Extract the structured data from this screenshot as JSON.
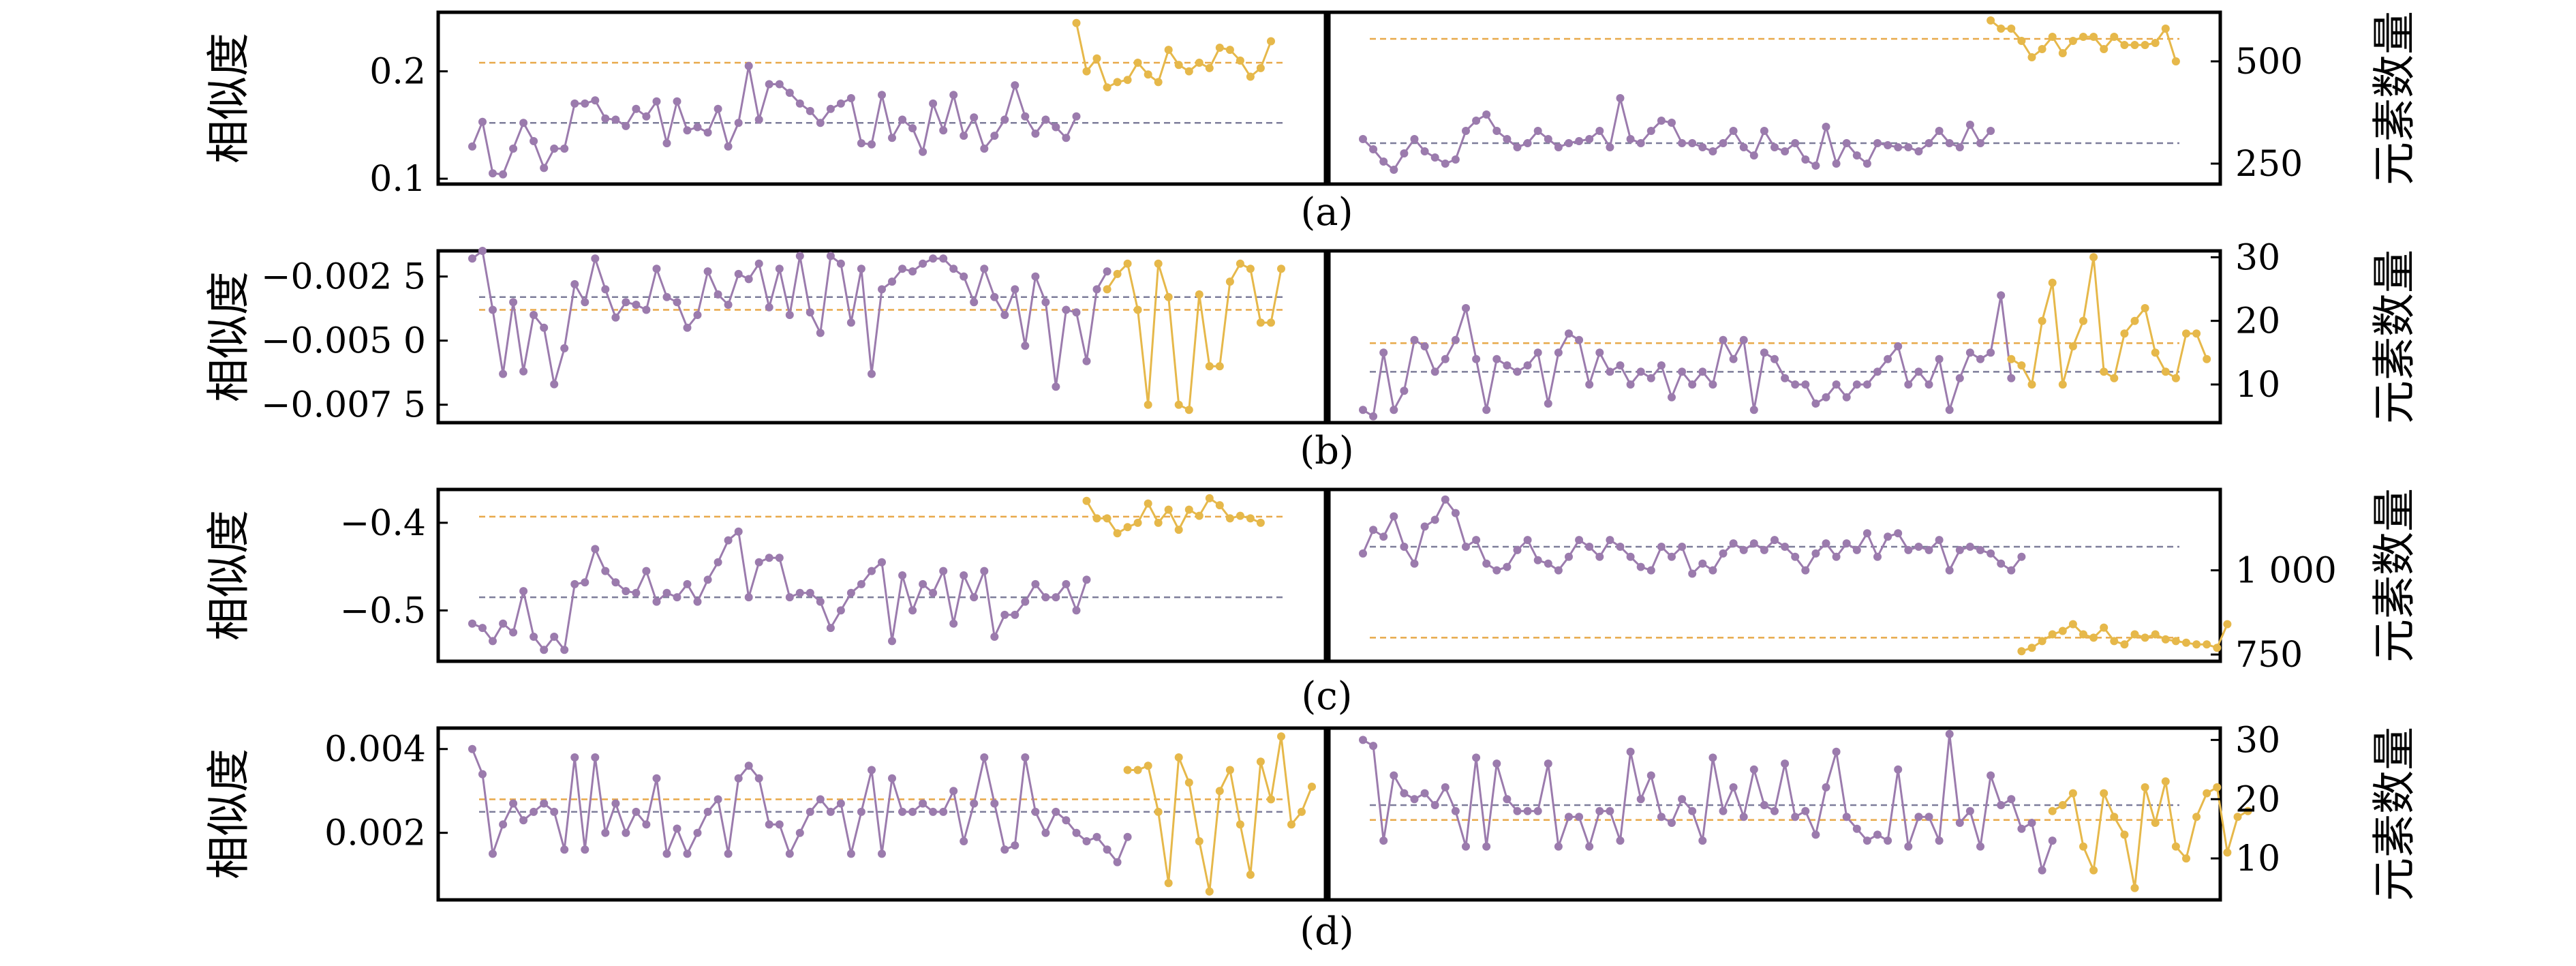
{
  "colors": {
    "purple": "#9b7bad",
    "yellow": "#e6b84a",
    "frame": "#000000",
    "purple_ref": "#7d7d9a",
    "yellow_ref": "#e8a94a"
  },
  "chart_data": [
    {
      "type": "line",
      "caption": "(a)",
      "left": {
        "ylabel": "相似度",
        "ylim": [
          0.095,
          0.255
        ],
        "yticks": [
          0.1,
          0.2
        ],
        "yticklabels": [
          "0.1",
          "0.2"
        ],
        "series": [
          {
            "color": "purple",
            "x_start": 0,
            "values": [
              0.13,
              0.153,
              0.105,
              0.104,
              0.128,
              0.152,
              0.135,
              0.11,
              0.128,
              0.128,
              0.17,
              0.17,
              0.173,
              0.156,
              0.155,
              0.149,
              0.165,
              0.158,
              0.172,
              0.133,
              0.172,
              0.145,
              0.148,
              0.143,
              0.165,
              0.13,
              0.152,
              0.205,
              0.155,
              0.188,
              0.188,
              0.18,
              0.17,
              0.163,
              0.152,
              0.165,
              0.17,
              0.175,
              0.133,
              0.132,
              0.178,
              0.138,
              0.155,
              0.147,
              0.125,
              0.17,
              0.145,
              0.178,
              0.14,
              0.157,
              0.128,
              0.14,
              0.155,
              0.187,
              0.158,
              0.142,
              0.155,
              0.148,
              0.138,
              0.158
            ]
          },
          {
            "color": "yellow",
            "x_start": 59,
            "values": [
              0.245,
              0.2,
              0.212,
              0.185,
              0.19,
              0.192,
              0.208,
              0.197,
              0.19,
              0.22,
              0.206,
              0.2,
              0.208,
              0.203,
              0.222,
              0.22,
              0.21,
              0.195,
              0.203,
              0.228
            ]
          }
        ],
        "reference_lines": [
          {
            "color": "purple_ref",
            "y": 0.152
          },
          {
            "color": "yellow_ref",
            "y": 0.208
          }
        ]
      },
      "right": {
        "ylabel": "元素数量",
        "ylim": [
          200,
          620
        ],
        "yticks": [
          250,
          500
        ],
        "yticklabels": [
          "250",
          "500"
        ],
        "series": [
          {
            "color": "purple",
            "x_start": 0,
            "values": [
              310,
              285,
              255,
              235,
              275,
              310,
              280,
              265,
              250,
              260,
              330,
              355,
              370,
              330,
              310,
              290,
              300,
              330,
              310,
              290,
              300,
              305,
              310,
              330,
              290,
              410,
              310,
              300,
              330,
              355,
              350,
              300,
              300,
              290,
              280,
              300,
              330,
              290,
              270,
              330,
              290,
              280,
              300,
              260,
              245,
              340,
              250,
              300,
              270,
              250,
              300,
              295,
              290,
              290,
              280,
              300,
              330,
              300,
              290,
              345,
              300,
              330
            ]
          },
          {
            "color": "yellow",
            "x_start": 61,
            "values": [
              600,
              580,
              580,
              550,
              510,
              530,
              560,
              520,
              550,
              560,
              560,
              530,
              560,
              540,
              540,
              540,
              545,
              580,
              500
            ]
          }
        ],
        "reference_lines": [
          {
            "color": "purple_ref",
            "y": 300
          },
          {
            "color": "yellow_ref",
            "y": 555
          }
        ]
      }
    },
    {
      "type": "line",
      "caption": "(b)",
      "left": {
        "ylabel": "相似度",
        "ylim": [
          -0.0082,
          -0.0015
        ],
        "yticks": [
          -0.0025,
          -0.005,
          -0.0075
        ],
        "yticklabels": [
          "−0.002 5",
          "−0.005 0",
          "−0.007 5"
        ],
        "series": [
          {
            "color": "purple",
            "x_start": 0,
            "values": [
              -0.0018,
              -0.0015,
              -0.0038,
              -0.0063,
              -0.0035,
              -0.0062,
              -0.004,
              -0.0045,
              -0.0067,
              -0.0053,
              -0.0028,
              -0.0035,
              -0.0018,
              -0.003,
              -0.0041,
              -0.0035,
              -0.0036,
              -0.0038,
              -0.0022,
              -0.0033,
              -0.0035,
              -0.0045,
              -0.004,
              -0.0023,
              -0.0032,
              -0.0036,
              -0.0024,
              -0.0026,
              -0.002,
              -0.0037,
              -0.0022,
              -0.004,
              -0.0017,
              -0.0039,
              -0.0047,
              -0.0017,
              -0.002,
              -0.0043,
              -0.0022,
              -0.0063,
              -0.003,
              -0.0027,
              -0.0022,
              -0.0023,
              -0.002,
              -0.0018,
              -0.0018,
              -0.0022,
              -0.0025,
              -0.0035,
              -0.0022,
              -0.0033,
              -0.004,
              -0.003,
              -0.0052,
              -0.0025,
              -0.0035,
              -0.0068,
              -0.0038,
              -0.0039,
              -0.0058,
              -0.003,
              -0.0023
            ]
          },
          {
            "color": "yellow",
            "x_start": 62,
            "values": [
              -0.003,
              -0.0024,
              -0.002,
              -0.0038,
              -0.0075,
              -0.002,
              -0.0033,
              -0.0075,
              -0.0077,
              -0.0032,
              -0.006,
              -0.006,
              -0.0027,
              -0.002,
              -0.0022,
              -0.0043,
              -0.0043,
              -0.0022
            ]
          }
        ],
        "reference_lines": [
          {
            "color": "purple_ref",
            "y": -0.0033
          },
          {
            "color": "yellow_ref",
            "y": -0.0038
          }
        ]
      },
      "right": {
        "ylabel": "元素数量",
        "ylim": [
          4,
          31
        ],
        "yticks": [
          10,
          20,
          30
        ],
        "yticklabels": [
          "10",
          "20",
          "30"
        ],
        "series": [
          {
            "color": "purple",
            "x_start": 0,
            "values": [
              6,
              5,
              15,
              6,
              9,
              17,
              16,
              12,
              14,
              17,
              22,
              14,
              6,
              14,
              13,
              12,
              13,
              15,
              7,
              15,
              18,
              17,
              10,
              15,
              12,
              13,
              10,
              12,
              11,
              13,
              8,
              12,
              10,
              12,
              10,
              17,
              14,
              17,
              6,
              15,
              14,
              11,
              10,
              10,
              7,
              8,
              10,
              8,
              10,
              10,
              12,
              14,
              16,
              10,
              12,
              10,
              14,
              6,
              11,
              15,
              14,
              15,
              24,
              11
            ]
          },
          {
            "color": "yellow",
            "x_start": 63,
            "values": [
              14,
              13,
              10,
              20,
              26,
              10,
              16,
              20,
              30,
              12,
              11,
              18,
              20,
              22,
              15,
              12,
              11,
              18,
              18,
              14
            ]
          }
        ],
        "reference_lines": [
          {
            "color": "purple_ref",
            "y": 12
          },
          {
            "color": "yellow_ref",
            "y": 16.5
          }
        ]
      }
    },
    {
      "type": "line",
      "caption": "(c)",
      "left": {
        "ylabel": "相似度",
        "ylim": [
          -0.558,
          -0.362
        ],
        "yticks": [
          -0.4,
          -0.5
        ],
        "yticklabels": [
          "−0.4",
          "−0.5"
        ],
        "series": [
          {
            "color": "purple",
            "x_start": 0,
            "values": [
              -0.515,
              -0.52,
              -0.535,
              -0.515,
              -0.525,
              -0.478,
              -0.53,
              -0.545,
              -0.53,
              -0.545,
              -0.47,
              -0.468,
              -0.43,
              -0.455,
              -0.468,
              -0.478,
              -0.48,
              -0.455,
              -0.49,
              -0.48,
              -0.485,
              -0.47,
              -0.49,
              -0.465,
              -0.445,
              -0.42,
              -0.41,
              -0.485,
              -0.445,
              -0.44,
              -0.44,
              -0.485,
              -0.48,
              -0.48,
              -0.49,
              -0.52,
              -0.5,
              -0.48,
              -0.47,
              -0.455,
              -0.445,
              -0.535,
              -0.46,
              -0.5,
              -0.47,
              -0.48,
              -0.455,
              -0.515,
              -0.46,
              -0.485,
              -0.455,
              -0.53,
              -0.505,
              -0.505,
              -0.49,
              -0.47,
              -0.485,
              -0.485,
              -0.47,
              -0.5,
              -0.465
            ]
          },
          {
            "color": "yellow",
            "x_start": 60,
            "values": [
              -0.375,
              -0.395,
              -0.395,
              -0.412,
              -0.405,
              -0.4,
              -0.378,
              -0.4,
              -0.385,
              -0.408,
              -0.385,
              -0.392,
              -0.372,
              -0.38,
              -0.395,
              -0.392,
              -0.395,
              -0.4
            ]
          }
        ],
        "reference_lines": [
          {
            "color": "purple_ref",
            "y": -0.485
          },
          {
            "color": "yellow_ref",
            "y": -0.393
          }
        ]
      },
      "right": {
        "ylabel": "元素数量",
        "ylim": [
          730,
          1240
        ],
        "yticks": [
          750,
          1000
        ],
        "yticklabels": [
          "750",
          "1 000"
        ],
        "series": [
          {
            "color": "purple",
            "x_start": 0,
            "values": [
              1050,
              1120,
              1100,
              1160,
              1070,
              1020,
              1130,
              1150,
              1210,
              1170,
              1070,
              1090,
              1020,
              1000,
              1010,
              1060,
              1090,
              1030,
              1020,
              1000,
              1040,
              1090,
              1070,
              1040,
              1090,
              1070,
              1040,
              1010,
              1000,
              1070,
              1040,
              1070,
              990,
              1020,
              1000,
              1050,
              1080,
              1060,
              1080,
              1060,
              1090,
              1070,
              1040,
              1000,
              1050,
              1080,
              1040,
              1080,
              1060,
              1110,
              1040,
              1100,
              1110,
              1060,
              1070,
              1060,
              1090,
              1000,
              1060,
              1070,
              1060,
              1050,
              1020,
              1000,
              1040
            ]
          },
          {
            "color": "yellow",
            "x_start": 64,
            "values": [
              760,
              770,
              790,
              810,
              820,
              840,
              810,
              800,
              830,
              790,
              780,
              810,
              800,
              810,
              795,
              790,
              785,
              780,
              780,
              770,
              840
            ]
          }
        ],
        "reference_lines": [
          {
            "color": "purple_ref",
            "y": 1070
          },
          {
            "color": "yellow_ref",
            "y": 800
          }
        ]
      }
    },
    {
      "type": "line",
      "caption": "(d)",
      "left": {
        "ylabel": "相似度",
        "ylim": [
          0.0004,
          0.0045
        ],
        "yticks": [
          0.004,
          0.002
        ],
        "yticklabels": [
          "0.004",
          "0.002"
        ],
        "series": [
          {
            "color": "purple",
            "x_start": 0,
            "values": [
              0.004,
              0.0034,
              0.0015,
              0.0022,
              0.0027,
              0.0023,
              0.0025,
              0.0027,
              0.0025,
              0.0016,
              0.0038,
              0.0016,
              0.0038,
              0.002,
              0.0027,
              0.002,
              0.0025,
              0.0022,
              0.0033,
              0.0015,
              0.0021,
              0.0015,
              0.002,
              0.0025,
              0.0028,
              0.0015,
              0.0033,
              0.0036,
              0.0033,
              0.0022,
              0.0022,
              0.0015,
              0.002,
              0.0025,
              0.0028,
              0.0025,
              0.0027,
              0.0015,
              0.0025,
              0.0035,
              0.0015,
              0.0033,
              0.0025,
              0.0025,
              0.0027,
              0.0025,
              0.0025,
              0.003,
              0.0018,
              0.0027,
              0.0038,
              0.0027,
              0.0016,
              0.0017,
              0.0038,
              0.0025,
              0.002,
              0.0025,
              0.0023,
              0.002,
              0.0018,
              0.0019,
              0.0016,
              0.0013,
              0.0019
            ]
          },
          {
            "color": "yellow",
            "x_start": 64,
            "values": [
              0.0035,
              0.0035,
              0.0036,
              0.0025,
              0.0008,
              0.0038,
              0.0032,
              0.0018,
              0.0006,
              0.003,
              0.0035,
              0.0022,
              0.001,
              0.0037,
              0.0028,
              0.0043,
              0.0022,
              0.0025,
              0.0031
            ]
          }
        ],
        "reference_lines": [
          {
            "color": "purple_ref",
            "y": 0.0025
          },
          {
            "color": "yellow_ref",
            "y": 0.0028
          }
        ]
      },
      "right": {
        "ylabel": "元素数量",
        "ylim": [
          3,
          32
        ],
        "yticks": [
          10,
          20,
          30
        ],
        "yticklabels": [
          "10",
          "20",
          "30"
        ],
        "series": [
          {
            "color": "purple",
            "x_start": 0,
            "values": [
              30,
              29,
              13,
              24,
              21,
              20,
              21,
              19,
              22,
              18,
              12,
              27,
              12,
              26,
              20,
              18,
              18,
              18,
              26,
              12,
              17,
              17,
              12,
              18,
              18,
              13,
              28,
              20,
              24,
              17,
              16,
              20,
              18,
              13,
              27,
              18,
              22,
              17,
              25,
              19,
              18,
              26,
              17,
              18,
              14,
              22,
              28,
              17,
              15,
              13,
              14,
              13,
              25,
              12,
              17,
              17,
              13,
              31,
              16,
              18,
              12,
              24,
              19,
              20,
              15,
              16,
              8,
              13
            ]
          },
          {
            "color": "yellow",
            "x_start": 67,
            "values": [
              18,
              19,
              21,
              12,
              8,
              21,
              17,
              14,
              5,
              22,
              16,
              23,
              12,
              10,
              17,
              21,
              22,
              11,
              17,
              18
            ]
          }
        ],
        "reference_lines": [
          {
            "color": "purple_ref",
            "y": 19
          },
          {
            "color": "yellow_ref",
            "y": 16.5
          }
        ]
      }
    }
  ]
}
